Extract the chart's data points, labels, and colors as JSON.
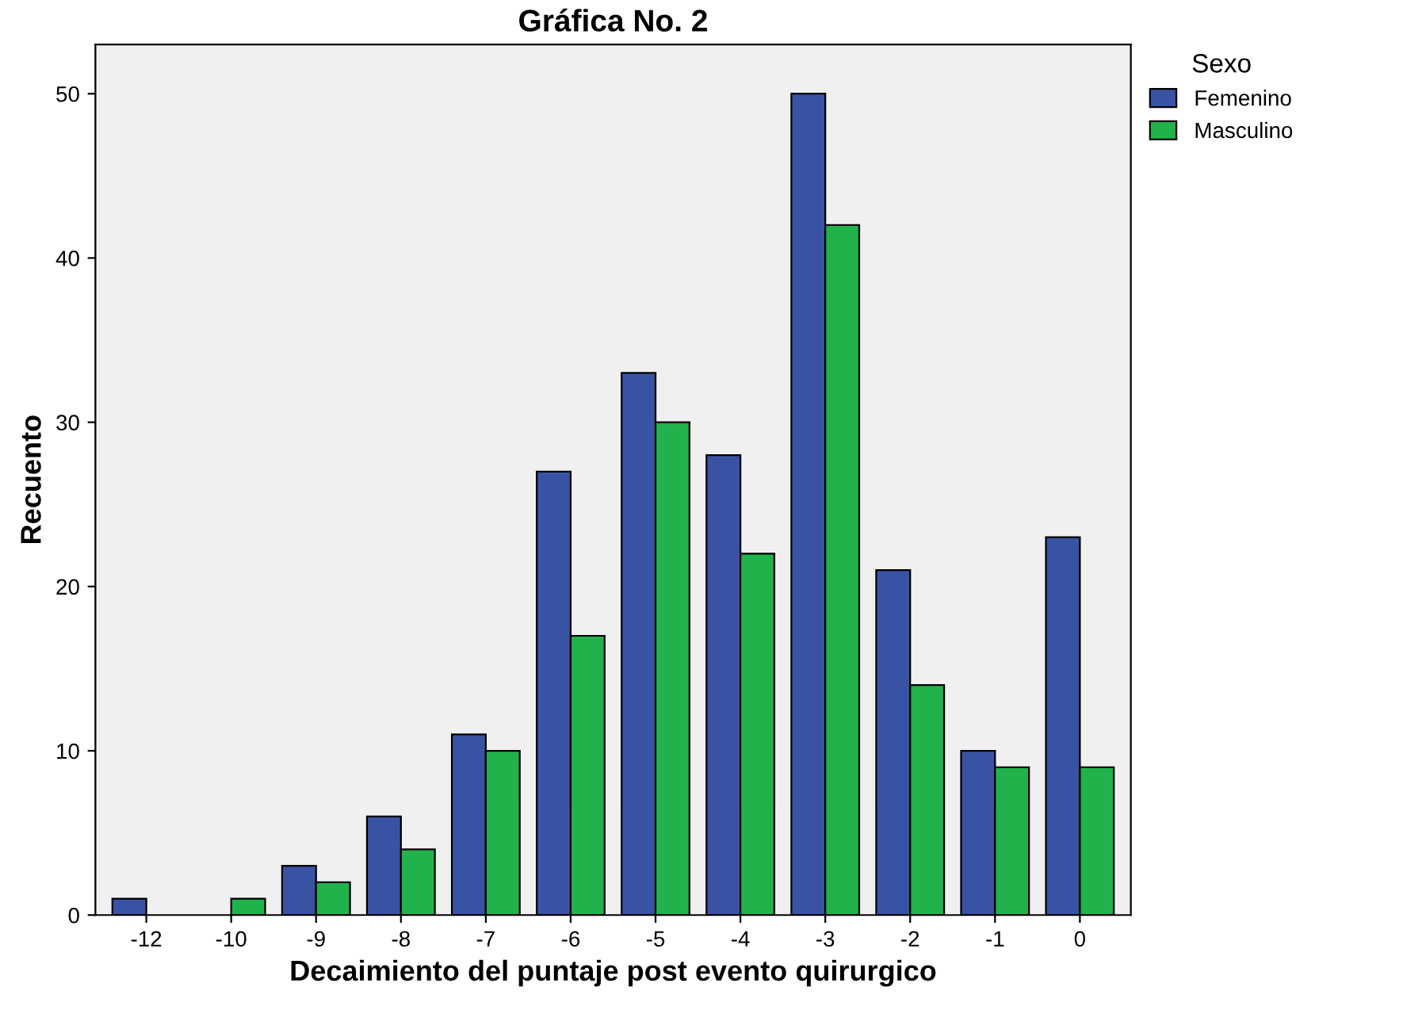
{
  "chart_data": {
    "type": "bar",
    "title": "Gráfica No. 2",
    "xlabel": "Decaimiento del puntaje post evento quirurgico",
    "ylabel": "Recuento",
    "legend_title": "Sexo",
    "categories": [
      "-12",
      "-10",
      "-9",
      "-8",
      "-7",
      "-6",
      "-5",
      "-4",
      "-3",
      "-2",
      "-1",
      "0"
    ],
    "series": [
      {
        "name": "Femenino",
        "color": "#3953a4",
        "values": [
          1,
          null,
          3,
          6,
          11,
          27,
          33,
          28,
          50,
          21,
          10,
          23
        ]
      },
      {
        "name": "Masculino",
        "color": "#21b24b",
        "values": [
          null,
          1,
          2,
          4,
          10,
          17,
          30,
          22,
          42,
          14,
          9,
          9
        ]
      }
    ],
    "ylim": [
      0,
      53
    ],
    "yticks": [
      0,
      10,
      20,
      30,
      40,
      50
    ],
    "grid": false,
    "legend": "top right"
  }
}
